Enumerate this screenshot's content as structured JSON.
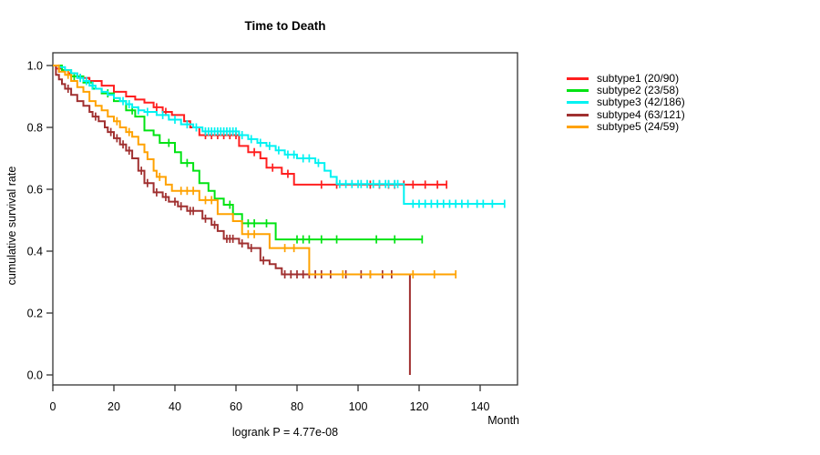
{
  "chart_data": {
    "type": "line",
    "variant": "kaplan-meier-step",
    "title": "Time to Death",
    "xlabel": "Month",
    "ylabel": "cumulative survival rate",
    "annotation": "logrank P = 4.77e-08",
    "xlim": [
      0,
      152
    ],
    "ylim": [
      -0.03,
      1.04
    ],
    "x_ticks": [
      0,
      20,
      40,
      60,
      80,
      100,
      120,
      140
    ],
    "y_ticks": [
      0.0,
      0.2,
      0.4,
      0.6,
      0.8,
      1.0
    ],
    "y_tick_labels": [
      "0.0",
      "0.2",
      "0.4",
      "0.6",
      "0.8",
      "1.0"
    ],
    "grid": false,
    "legend_position": "right-outside",
    "series": [
      {
        "name": "subtype1 (20/90)",
        "color": "#ff1f1f",
        "points": [
          [
            0,
            1.0
          ],
          [
            1,
            0.99
          ],
          [
            3,
            0.985
          ],
          [
            5,
            0.975
          ],
          [
            8,
            0.96
          ],
          [
            12,
            0.95
          ],
          [
            16,
            0.935
          ],
          [
            20,
            0.915
          ],
          [
            24,
            0.9
          ],
          [
            27,
            0.89
          ],
          [
            30,
            0.88
          ],
          [
            33,
            0.865
          ],
          [
            36,
            0.85
          ],
          [
            39,
            0.84
          ],
          [
            43,
            0.82
          ],
          [
            45,
            0.8
          ],
          [
            48,
            0.775
          ],
          [
            61,
            0.74
          ],
          [
            64,
            0.72
          ],
          [
            68,
            0.7
          ],
          [
            70,
            0.67
          ],
          [
            75,
            0.65
          ],
          [
            79,
            0.615
          ],
          [
            129,
            0.615
          ]
        ],
        "censor_times": [
          2,
          6,
          9,
          34,
          37,
          50,
          52,
          54,
          56,
          58,
          60,
          66,
          72,
          77,
          88,
          93,
          104,
          107,
          110,
          112,
          115,
          118,
          122,
          126,
          129
        ]
      },
      {
        "name": "subtype2 (23/58)",
        "color": "#00e313",
        "points": [
          [
            0,
            1.0
          ],
          [
            3,
            0.985
          ],
          [
            6,
            0.965
          ],
          [
            10,
            0.945
          ],
          [
            13,
            0.925
          ],
          [
            16,
            0.91
          ],
          [
            20,
            0.885
          ],
          [
            24,
            0.855
          ],
          [
            27,
            0.835
          ],
          [
            30,
            0.79
          ],
          [
            33,
            0.775
          ],
          [
            35,
            0.75
          ],
          [
            40,
            0.72
          ],
          [
            42,
            0.685
          ],
          [
            46,
            0.66
          ],
          [
            48,
            0.62
          ],
          [
            51,
            0.595
          ],
          [
            53,
            0.57
          ],
          [
            56,
            0.55
          ],
          [
            59,
            0.52
          ],
          [
            62,
            0.49
          ],
          [
            73,
            0.438
          ],
          [
            121,
            0.438
          ]
        ],
        "censor_times": [
          7,
          18,
          26,
          38,
          44,
          58,
          64,
          66,
          70,
          80,
          82,
          84,
          88,
          93,
          106,
          112,
          121
        ]
      },
      {
        "name": "subtype3 (42/186)",
        "color": "#00f2f2",
        "points": [
          [
            0,
            1.0
          ],
          [
            2,
            0.995
          ],
          [
            4,
            0.985
          ],
          [
            6,
            0.975
          ],
          [
            8,
            0.96
          ],
          [
            10,
            0.95
          ],
          [
            12,
            0.935
          ],
          [
            14,
            0.925
          ],
          [
            16,
            0.915
          ],
          [
            18,
            0.905
          ],
          [
            20,
            0.895
          ],
          [
            22,
            0.885
          ],
          [
            24,
            0.875
          ],
          [
            26,
            0.865
          ],
          [
            28,
            0.855
          ],
          [
            30,
            0.85
          ],
          [
            34,
            0.84
          ],
          [
            38,
            0.825
          ],
          [
            42,
            0.81
          ],
          [
            46,
            0.8
          ],
          [
            49,
            0.787
          ],
          [
            61,
            0.775
          ],
          [
            64,
            0.762
          ],
          [
            67,
            0.75
          ],
          [
            70,
            0.74
          ],
          [
            73,
            0.726
          ],
          [
            76,
            0.712
          ],
          [
            80,
            0.7
          ],
          [
            86,
            0.685
          ],
          [
            89,
            0.66
          ],
          [
            91,
            0.64
          ],
          [
            93,
            0.617
          ],
          [
            115,
            0.553
          ],
          [
            148,
            0.553
          ]
        ],
        "censor_times": [
          9,
          11,
          13,
          23,
          25,
          28,
          31,
          36,
          40,
          44,
          47,
          50,
          51,
          52,
          53,
          54,
          55,
          56,
          57,
          58,
          59,
          60,
          62,
          65,
          68,
          71,
          74,
          77,
          79,
          82,
          84,
          87,
          94,
          96,
          98,
          100,
          101,
          103,
          105,
          107,
          109,
          110,
          112,
          113,
          118,
          120,
          122,
          124,
          126,
          128,
          130,
          132,
          134,
          136,
          139,
          141,
          144,
          148
        ]
      },
      {
        "name": "subtype4 (63/121)",
        "color": "#a03030",
        "points": [
          [
            0,
            1.0
          ],
          [
            1,
            0.97
          ],
          [
            2,
            0.955
          ],
          [
            3,
            0.94
          ],
          [
            4,
            0.925
          ],
          [
            6,
            0.905
          ],
          [
            8,
            0.885
          ],
          [
            10,
            0.87
          ],
          [
            12,
            0.85
          ],
          [
            13,
            0.835
          ],
          [
            15,
            0.82
          ],
          [
            17,
            0.8
          ],
          [
            18,
            0.785
          ],
          [
            20,
            0.765
          ],
          [
            22,
            0.745
          ],
          [
            24,
            0.725
          ],
          [
            26,
            0.7
          ],
          [
            28,
            0.66
          ],
          [
            30,
            0.62
          ],
          [
            33,
            0.59
          ],
          [
            36,
            0.575
          ],
          [
            38,
            0.56
          ],
          [
            41,
            0.545
          ],
          [
            44,
            0.53
          ],
          [
            49,
            0.505
          ],
          [
            52,
            0.485
          ],
          [
            54,
            0.465
          ],
          [
            56,
            0.44
          ],
          [
            61,
            0.425
          ],
          [
            64,
            0.41
          ],
          [
            68,
            0.37
          ],
          [
            71,
            0.358
          ],
          [
            73,
            0.345
          ],
          [
            75,
            0.325
          ],
          [
            117,
            0.325
          ],
          [
            117,
            0.0
          ]
        ],
        "censor_times": [
          5,
          14,
          19,
          21,
          23,
          25,
          29,
          31,
          34,
          37,
          40,
          42,
          45,
          46,
          50,
          53,
          57,
          58,
          59,
          62,
          65,
          69,
          76,
          78,
          80,
          82,
          84,
          86,
          88,
          91,
          96,
          101,
          104,
          108,
          111
        ]
      },
      {
        "name": "subtype5 (24/59)",
        "color": "#ffa200",
        "points": [
          [
            0,
            1.0
          ],
          [
            2,
            0.98
          ],
          [
            4,
            0.97
          ],
          [
            6,
            0.95
          ],
          [
            8,
            0.93
          ],
          [
            10,
            0.915
          ],
          [
            12,
            0.885
          ],
          [
            14,
            0.87
          ],
          [
            16,
            0.855
          ],
          [
            18,
            0.835
          ],
          [
            20,
            0.82
          ],
          [
            22,
            0.8
          ],
          [
            24,
            0.785
          ],
          [
            26,
            0.77
          ],
          [
            28,
            0.745
          ],
          [
            30,
            0.72
          ],
          [
            31,
            0.697
          ],
          [
            33,
            0.66
          ],
          [
            34,
            0.64
          ],
          [
            37,
            0.615
          ],
          [
            39,
            0.595
          ],
          [
            48,
            0.565
          ],
          [
            54,
            0.52
          ],
          [
            59,
            0.497
          ],
          [
            62,
            0.455
          ],
          [
            71,
            0.41
          ],
          [
            84,
            0.325
          ],
          [
            132,
            0.325
          ]
        ],
        "censor_times": [
          5,
          21,
          25,
          35,
          42,
          44,
          46,
          50,
          52,
          64,
          66,
          76,
          79,
          95,
          104,
          118,
          125,
          132
        ]
      }
    ]
  }
}
